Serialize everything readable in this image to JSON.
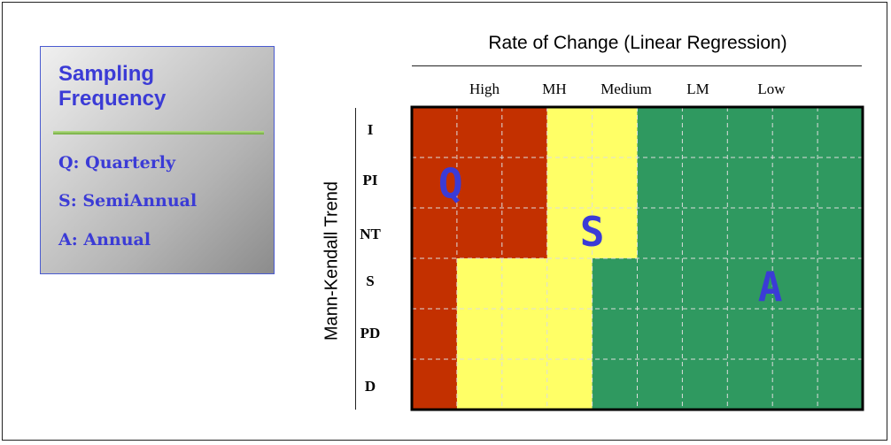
{
  "legend": {
    "title_line1": "Sampling",
    "title_line2": "Frequency",
    "entries": [
      "Q: Quarterly",
      "S: SemiAnnual",
      "A: Annual"
    ]
  },
  "chart_title": "Rate of Change (Linear Regression)",
  "y_title": "Mann-Kendall Trend",
  "column_labels": [
    "High",
    "MH",
    "Medium",
    "LM",
    "Low"
  ],
  "row_labels": [
    "I",
    "PI",
    "NT",
    "S",
    "PD",
    "D"
  ],
  "colors": {
    "quarterly": "#c33000",
    "semiannual": "#ffff66",
    "annual": "#2f9960",
    "letters": "#3b3bd6"
  },
  "chart_data": {
    "type": "heatmap",
    "title": "Rate of Change (Linear Regression)",
    "x_categories": [
      "High",
      "MH",
      "Medium",
      "LM",
      "Low"
    ],
    "y_categories": [
      "I",
      "PI",
      "NT",
      "S",
      "PD",
      "D"
    ],
    "ylabel": "Mann-Kendall Trend",
    "region_labels": [
      "Q",
      "S",
      "A"
    ],
    "cells": [
      [
        "Q",
        "Q",
        "Q",
        "S",
        "S",
        "A",
        "A",
        "A",
        "A",
        "A"
      ],
      [
        "Q",
        "Q",
        "Q",
        "S",
        "S",
        "A",
        "A",
        "A",
        "A",
        "A"
      ],
      [
        "Q",
        "Q",
        "Q",
        "S",
        "S",
        "A",
        "A",
        "A",
        "A",
        "A"
      ],
      [
        "Q",
        "S",
        "S",
        "S",
        "A",
        "A",
        "A",
        "A",
        "A",
        "A"
      ],
      [
        "Q",
        "S",
        "S",
        "S",
        "A",
        "A",
        "A",
        "A",
        "A",
        "A"
      ],
      [
        "Q",
        "S",
        "S",
        "S",
        "A",
        "A",
        "A",
        "A",
        "A",
        "A"
      ]
    ]
  }
}
